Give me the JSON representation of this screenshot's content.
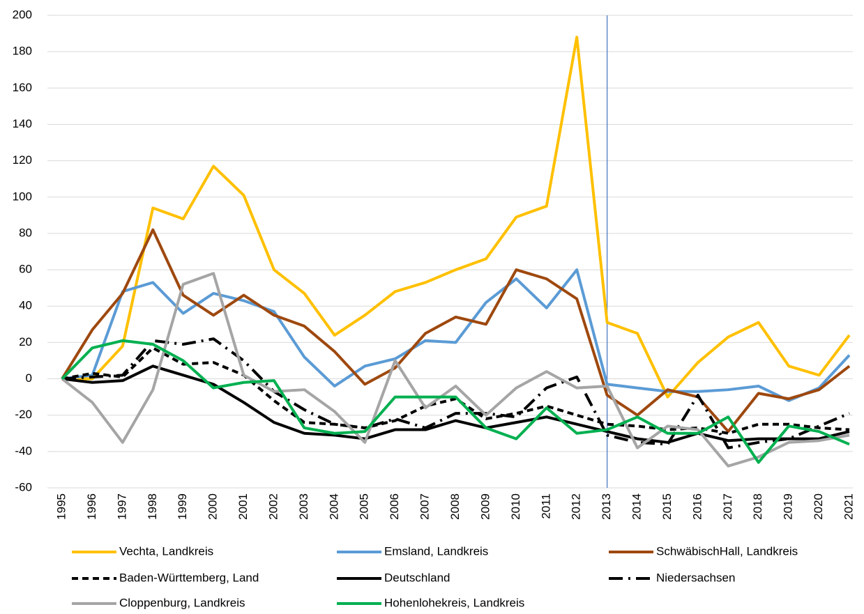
{
  "chart_data": {
    "type": "line",
    "categories": [
      "1995",
      "1996",
      "1997",
      "1998",
      "1999",
      "2000",
      "2001",
      "2002",
      "2003",
      "2004",
      "2005",
      "2006",
      "2007",
      "2008",
      "2009",
      "2010",
      "2011",
      "2012",
      "2013",
      "2014",
      "2015",
      "2016",
      "2017",
      "2018",
      "2019",
      "2020",
      "2021"
    ],
    "series": [
      {
        "name": "Vechta, Landkreis",
        "color": "#ffc000",
        "dash": "none",
        "values": [
          0,
          0,
          18,
          94,
          88,
          117,
          101,
          60,
          47,
          24,
          35,
          48,
          53,
          60,
          66,
          89,
          95,
          188,
          31,
          25,
          -10,
          9,
          23,
          31,
          7,
          2,
          24
        ]
      },
      {
        "name": "Emsland, Landkreis",
        "color": "#5b9bd5",
        "dash": "none",
        "values": [
          0,
          2,
          48,
          53,
          36,
          47,
          43,
          37,
          12,
          -4,
          7,
          11,
          21,
          20,
          42,
          55,
          39,
          60,
          -3,
          -5,
          -7,
          -7,
          -6,
          -4,
          -12,
          -5,
          13
        ]
      },
      {
        "name": "SchwäbischHall, Landkreis",
        "color": "#9e480e",
        "dash": "none",
        "values": [
          0,
          27,
          47,
          82,
          46,
          35,
          46,
          35,
          29,
          15,
          -3,
          6,
          25,
          34,
          30,
          60,
          55,
          44,
          -9,
          -20,
          -6,
          -10,
          -29,
          -8,
          -11,
          -6,
          7
        ]
      },
      {
        "name": "Baden-Württemberg, Land",
        "color": "#000000",
        "dash": "9,6",
        "values": [
          0,
          3,
          1,
          17,
          8,
          9,
          2,
          -12,
          -24,
          -25,
          -27,
          -23,
          -15,
          -11,
          -22,
          -19,
          -15,
          -20,
          -25,
          -26,
          -28,
          -27,
          -30,
          -25,
          -25,
          -27,
          -28
        ]
      },
      {
        "name": "Deutschland",
        "color": "#000000",
        "dash": "none",
        "values": [
          0,
          -2,
          -1,
          7,
          2,
          -3,
          -13,
          -24,
          -30,
          -31,
          -33,
          -28,
          -28,
          -23,
          -27,
          -24,
          -21,
          -25,
          -29,
          -33,
          -35,
          -30,
          -34,
          -33,
          -33,
          -33,
          -29
        ]
      },
      {
        "name": "Niedersachsen",
        "color": "#000000",
        "dash": "20,8,3,8",
        "values": [
          0,
          1,
          2,
          21,
          19,
          22,
          10,
          -7,
          -17,
          -25,
          -27,
          -22,
          -27,
          -19,
          -19,
          -21,
          -5,
          1,
          -31,
          -35,
          -36,
          -9,
          -38,
          -35,
          -33,
          -26,
          -19
        ]
      },
      {
        "name": "Cloppenburg, Landkreis",
        "color": "#a5a5a5",
        "dash": "none",
        "values": [
          0,
          -13,
          -35,
          -6,
          52,
          58,
          2,
          -7,
          -6,
          -18,
          -35,
          10,
          -16,
          -4,
          -20,
          -5,
          4,
          -5,
          -4,
          -38,
          -26,
          -28,
          -48,
          -43,
          -35,
          -34,
          -31
        ]
      },
      {
        "name": "Hohenlohekreis, Landkreis",
        "color": "#00b050",
        "dash": "none",
        "values": [
          0,
          17,
          21,
          19,
          10,
          -5,
          -2,
          -1,
          -27,
          -30,
          -29,
          -10,
          -10,
          -10,
          -27,
          -33,
          -16,
          -30,
          -28,
          -21,
          -30,
          -30,
          -21,
          -46,
          -26,
          -29,
          -36
        ]
      }
    ],
    "ylim": [
      -60,
      200
    ],
    "yticks": [
      -60,
      -40,
      -20,
      0,
      20,
      40,
      60,
      80,
      100,
      120,
      140,
      160,
      180,
      200
    ],
    "grid": true,
    "vertical_line": {
      "x": "2013",
      "color": "#4472c4"
    },
    "legend": "bottom"
  }
}
